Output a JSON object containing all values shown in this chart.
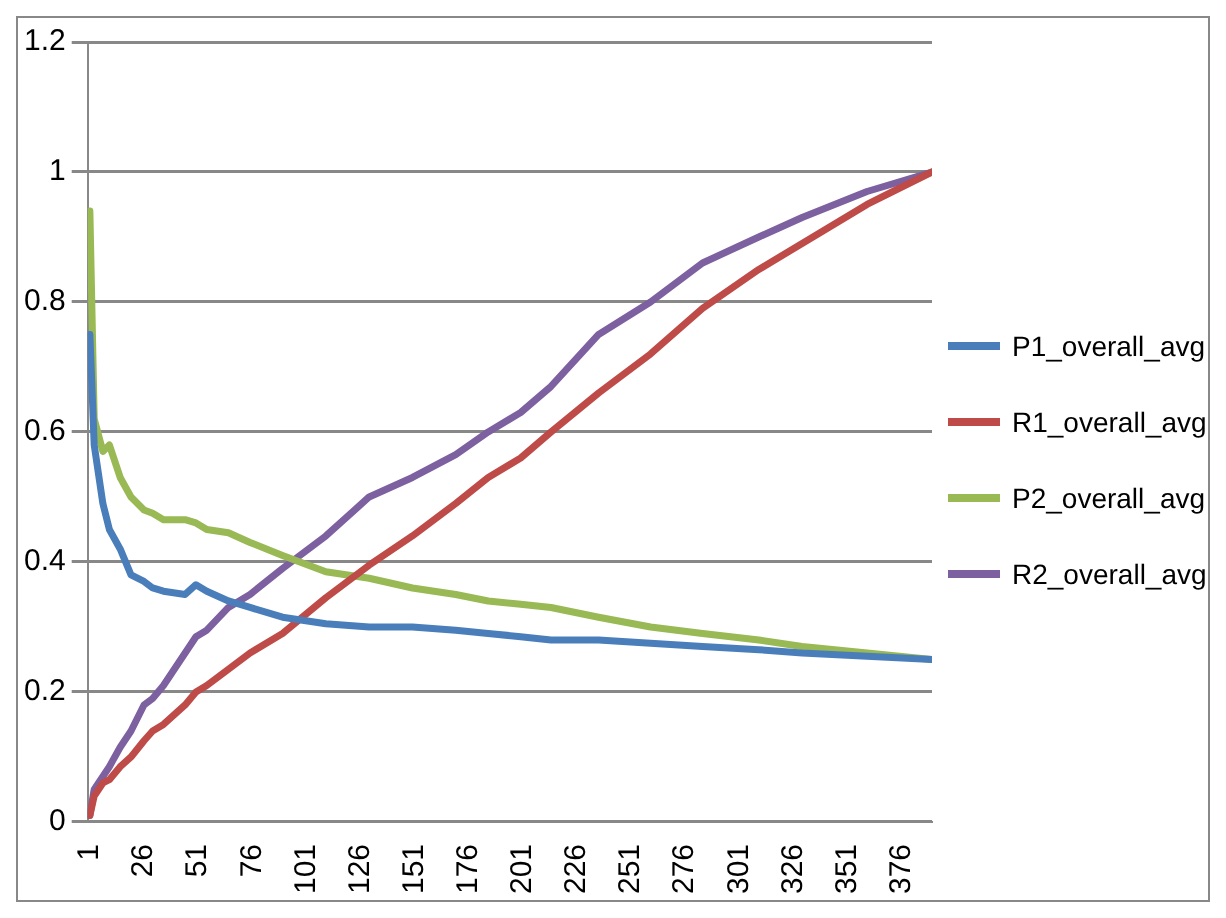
{
  "chart_data": {
    "type": "line",
    "x": [
      1,
      3,
      7,
      10,
      15,
      20,
      26,
      30,
      35,
      45,
      50,
      55,
      65,
      75,
      90,
      110,
      130,
      150,
      170,
      185,
      200,
      214,
      236,
      260,
      284,
      310,
      330,
      360,
      390
    ],
    "series": [
      {
        "name": "P1_overall_avg",
        "color": "#4a7ebb",
        "values": [
          0.75,
          0.58,
          0.49,
          0.45,
          0.42,
          0.38,
          0.37,
          0.36,
          0.355,
          0.35,
          0.365,
          0.355,
          0.34,
          0.33,
          0.315,
          0.305,
          0.3,
          0.3,
          0.295,
          0.29,
          0.285,
          0.28,
          0.28,
          0.275,
          0.27,
          0.265,
          0.26,
          0.255,
          0.25
        ]
      },
      {
        "name": "R1_overall_avg",
        "color": "#be4b48",
        "values": [
          0.01,
          0.04,
          0.06,
          0.065,
          0.085,
          0.1,
          0.125,
          0.14,
          0.15,
          0.18,
          0.2,
          0.21,
          0.235,
          0.26,
          0.29,
          0.345,
          0.395,
          0.44,
          0.49,
          0.53,
          0.56,
          0.6,
          0.66,
          0.72,
          0.79,
          0.85,
          0.89,
          0.95,
          1.0
        ]
      },
      {
        "name": "P2_overall_avg",
        "color": "#98b954",
        "values": [
          0.94,
          0.62,
          0.57,
          0.58,
          0.53,
          0.5,
          0.48,
          0.475,
          0.465,
          0.465,
          0.46,
          0.45,
          0.445,
          0.43,
          0.41,
          0.385,
          0.375,
          0.36,
          0.35,
          0.34,
          0.335,
          0.33,
          0.315,
          0.3,
          0.29,
          0.28,
          0.27,
          0.26,
          0.25
        ]
      },
      {
        "name": "R2_overall_avg",
        "color": "#7d60a0",
        "values": [
          0.01,
          0.05,
          0.07,
          0.085,
          0.115,
          0.14,
          0.18,
          0.19,
          0.21,
          0.26,
          0.285,
          0.295,
          0.33,
          0.35,
          0.39,
          0.44,
          0.5,
          0.53,
          0.565,
          0.6,
          0.63,
          0.67,
          0.75,
          0.8,
          0.86,
          0.9,
          0.93,
          0.97,
          1.0
        ]
      }
    ],
    "xlim": [
      0,
      390
    ],
    "xticks": [
      1,
      26,
      51,
      76,
      101,
      126,
      151,
      176,
      201,
      226,
      251,
      276,
      301,
      326,
      351,
      376
    ],
    "ylim": [
      0,
      1.2
    ],
    "yticks": [
      0,
      0.2,
      0.4,
      0.6,
      0.8,
      1,
      1.2
    ],
    "grid": "y",
    "legend": "right",
    "marker": "none",
    "line_style": "solid"
  }
}
